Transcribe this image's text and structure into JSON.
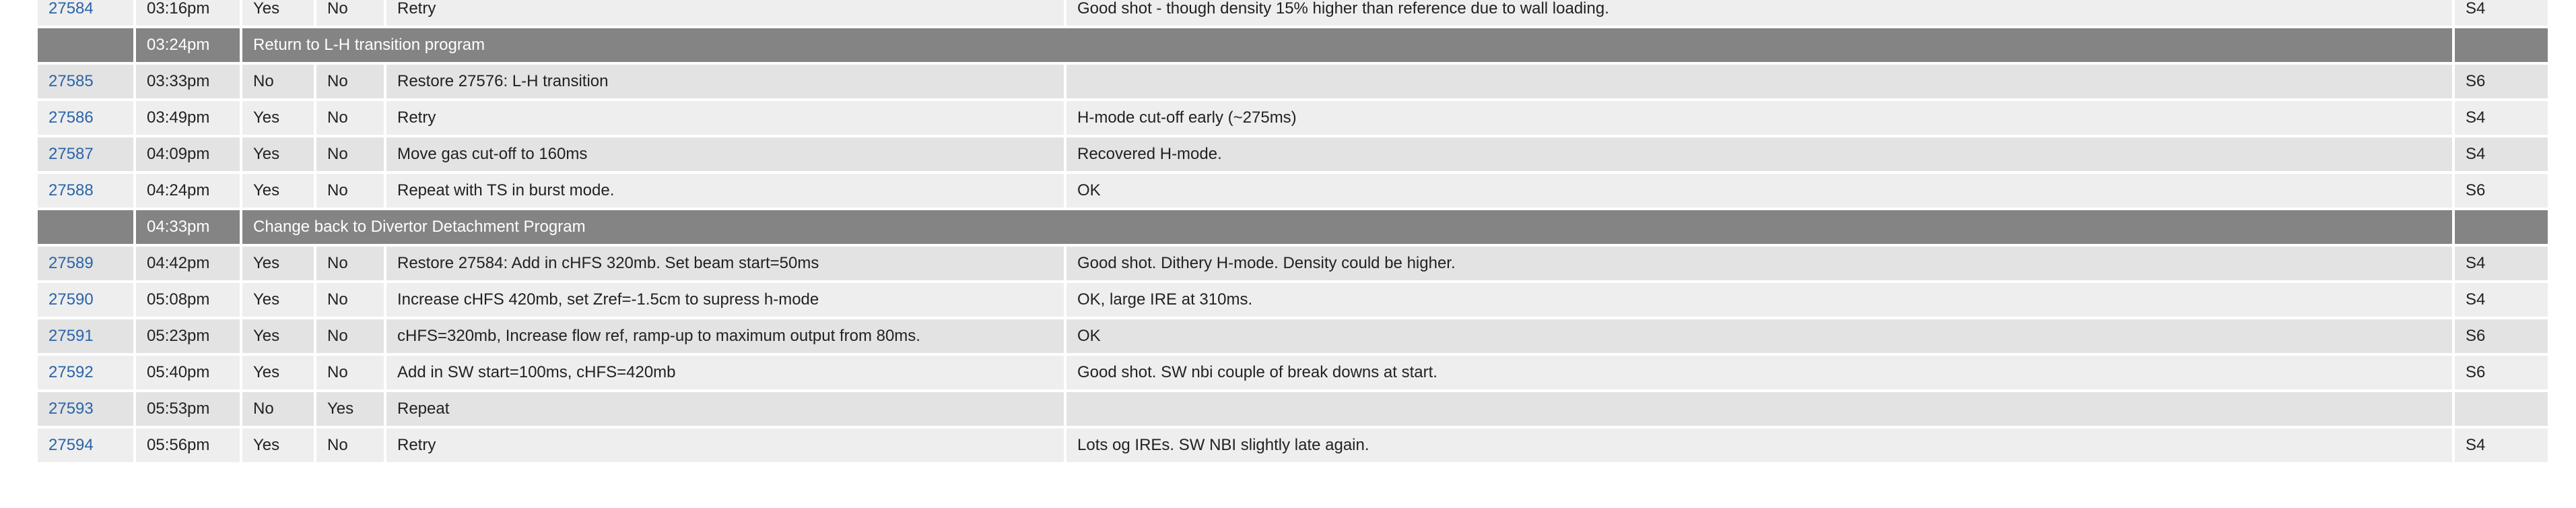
{
  "rows": [
    {
      "kind": "shot",
      "shot": "27584",
      "time": "03:16pm",
      "a": "Yes",
      "b": "No",
      "description": "Retry",
      "comment": "Good shot - though density 15% higher than reference due to wall loading.",
      "code": "S4"
    },
    {
      "kind": "section",
      "time": "03:24pm",
      "title": "Return to L-H transition program"
    },
    {
      "kind": "shot",
      "shot": "27585",
      "time": "03:33pm",
      "a": "No",
      "b": "No",
      "description": "Restore 27576: L-H transition",
      "comment": "",
      "code": "S6"
    },
    {
      "kind": "shot",
      "shot": "27586",
      "time": "03:49pm",
      "a": "Yes",
      "b": "No",
      "description": "Retry",
      "comment": "H-mode cut-off early (~275ms)",
      "code": "S4"
    },
    {
      "kind": "shot",
      "shot": "27587",
      "time": "04:09pm",
      "a": "Yes",
      "b": "No",
      "description": "Move gas cut-off to 160ms",
      "comment": "Recovered H-mode.",
      "code": "S4"
    },
    {
      "kind": "shot",
      "shot": "27588",
      "time": "04:24pm",
      "a": "Yes",
      "b": "No",
      "description": "Repeat with TS in burst mode.",
      "comment": "OK",
      "code": "S6"
    },
    {
      "kind": "section",
      "time": "04:33pm",
      "title": "Change back to Divertor Detachment Program"
    },
    {
      "kind": "shot",
      "shot": "27589",
      "time": "04:42pm",
      "a": "Yes",
      "b": "No",
      "description": "Restore 27584: Add in cHFS 320mb. Set beam start=50ms",
      "comment": "Good shot. Dithery H-mode. Density could be higher.",
      "code": "S4"
    },
    {
      "kind": "shot",
      "shot": "27590",
      "time": "05:08pm",
      "a": "Yes",
      "b": "No",
      "description": "Increase cHFS 420mb, set Zref=-1.5cm to supress h-mode",
      "comment": "OK, large IRE at 310ms.",
      "code": "S4"
    },
    {
      "kind": "shot",
      "shot": "27591",
      "time": "05:23pm",
      "a": "Yes",
      "b": "No",
      "description": "cHFS=320mb, Increase flow ref, ramp-up to maximum output from 80ms.",
      "comment": "OK",
      "code": "S6"
    },
    {
      "kind": "shot",
      "shot": "27592",
      "time": "05:40pm",
      "a": "Yes",
      "b": "No",
      "description": "Add in SW start=100ms, cHFS=420mb",
      "comment": "Good shot. SW nbi couple of break downs at start.",
      "code": "S6"
    },
    {
      "kind": "shot",
      "shot": "27593",
      "time": "05:53pm",
      "a": "No",
      "b": "Yes",
      "description": "Repeat",
      "comment": "",
      "code": ""
    },
    {
      "kind": "shot",
      "shot": "27594",
      "time": "05:56pm",
      "a": "Yes",
      "b": "No",
      "description": "Retry",
      "comment": "Lots og IREs. SW NBI slightly late again.",
      "code": "S4"
    }
  ]
}
